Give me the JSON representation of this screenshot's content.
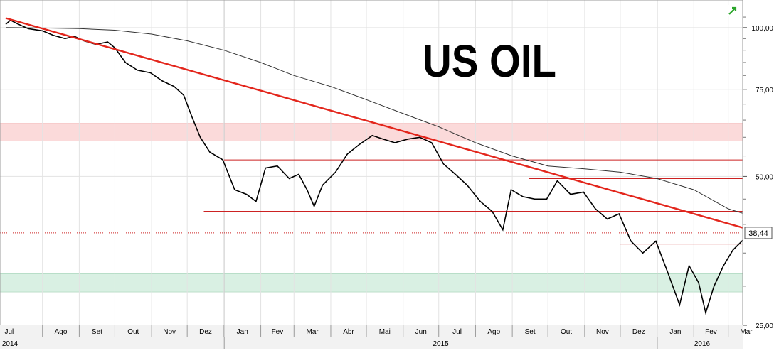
{
  "chart_data": {
    "type": "line",
    "title": "US OIL",
    "y_scale": "log",
    "ylim": [
      25,
      110
    ],
    "y_ticks": [
      {
        "value": 25,
        "label": "25,00"
      },
      {
        "value": 50,
        "label": "50,00"
      },
      {
        "value": 75,
        "label": "75,00"
      },
      {
        "value": 100,
        "label": "100,00"
      }
    ],
    "last_price": {
      "value": 38.44,
      "label": "38,44"
    },
    "x_months": [
      "Jul",
      "Ago",
      "Set",
      "Out",
      "Nov",
      "Dez",
      "Jan",
      "Fev",
      "Mar",
      "Abr",
      "Mai",
      "Jun",
      "Jul",
      "Ago",
      "Set",
      "Out",
      "Nov",
      "Dez",
      "Jan",
      "Fev",
      "Mar"
    ],
    "x_years": [
      {
        "label": "2014",
        "start_month": "2014-06"
      },
      {
        "label": "2015",
        "start_month": "2014-12.5"
      },
      {
        "label": "2016",
        "start_month": "2015-12"
      }
    ],
    "price_series": [
      [
        "2014-07-01",
        101.5
      ],
      [
        "2014-07-05",
        103.5
      ],
      [
        "2014-07-10",
        102
      ],
      [
        "2014-07-20",
        99.5
      ],
      [
        "2014-08-01",
        98.5
      ],
      [
        "2014-08-10",
        96.5
      ],
      [
        "2014-08-20",
        95
      ],
      [
        "2014-08-28",
        96
      ],
      [
        "2014-09-05",
        94
      ],
      [
        "2014-09-15",
        92.5
      ],
      [
        "2014-09-25",
        93.5
      ],
      [
        "2014-10-01",
        91
      ],
      [
        "2014-10-10",
        85
      ],
      [
        "2014-10-20",
        82
      ],
      [
        "2014-10-31",
        81
      ],
      [
        "2014-11-10",
        78
      ],
      [
        "2014-11-20",
        76
      ],
      [
        "2014-11-28",
        73
      ],
      [
        "2014-12-05",
        66
      ],
      [
        "2014-12-12",
        60
      ],
      [
        "2014-12-20",
        56
      ],
      [
        "2014-12-31",
        54
      ],
      [
        "2015-01-10",
        47
      ],
      [
        "2015-01-20",
        46
      ],
      [
        "2015-01-28",
        44.5
      ],
      [
        "2015-02-05",
        52
      ],
      [
        "2015-02-15",
        52.5
      ],
      [
        "2015-02-25",
        49.5
      ],
      [
        "2015-03-05",
        50.5
      ],
      [
        "2015-03-12",
        47
      ],
      [
        "2015-03-18",
        43.5
      ],
      [
        "2015-03-25",
        48
      ],
      [
        "2015-04-05",
        51
      ],
      [
        "2015-04-15",
        55.5
      ],
      [
        "2015-04-25",
        58
      ],
      [
        "2015-05-06",
        60.5
      ],
      [
        "2015-05-15",
        59.5
      ],
      [
        "2015-05-25",
        58.5
      ],
      [
        "2015-06-05",
        59.5
      ],
      [
        "2015-06-15",
        60
      ],
      [
        "2015-06-25",
        58.5
      ],
      [
        "2015-07-05",
        53
      ],
      [
        "2015-07-15",
        50.5
      ],
      [
        "2015-07-25",
        48
      ],
      [
        "2015-08-05",
        44.5
      ],
      [
        "2015-08-15",
        42.5
      ],
      [
        "2015-08-24",
        39
      ],
      [
        "2015-08-31",
        47
      ],
      [
        "2015-09-10",
        45.5
      ],
      [
        "2015-09-20",
        45
      ],
      [
        "2015-09-30",
        45
      ],
      [
        "2015-10-09",
        49
      ],
      [
        "2015-10-20",
        46
      ],
      [
        "2015-10-31",
        46.5
      ],
      [
        "2015-11-10",
        43
      ],
      [
        "2015-11-20",
        41
      ],
      [
        "2015-11-30",
        42
      ],
      [
        "2015-12-10",
        37
      ],
      [
        "2015-12-20",
        35
      ],
      [
        "2015-12-31",
        37
      ],
      [
        "2016-01-10",
        32
      ],
      [
        "2016-01-20",
        27.5
      ],
      [
        "2016-01-28",
        33
      ],
      [
        "2016-02-05",
        30.5
      ],
      [
        "2016-02-11",
        26.5
      ],
      [
        "2016-02-18",
        30
      ],
      [
        "2016-02-26",
        33
      ],
      [
        "2016-03-05",
        35.5
      ],
      [
        "2016-03-15",
        37.5
      ],
      [
        "2016-03-22",
        38.44
      ]
    ],
    "moving_average": [
      [
        "2014-07-01",
        100
      ],
      [
        "2014-08-01",
        99.8
      ],
      [
        "2014-09-01",
        99.5
      ],
      [
        "2014-10-01",
        98.8
      ],
      [
        "2014-11-01",
        97
      ],
      [
        "2014-12-01",
        94
      ],
      [
        "2015-01-01",
        90
      ],
      [
        "2015-02-01",
        85
      ],
      [
        "2015-03-01",
        80
      ],
      [
        "2015-04-01",
        76
      ],
      [
        "2015-05-01",
        71.5
      ],
      [
        "2015-06-01",
        67
      ],
      [
        "2015-07-01",
        63
      ],
      [
        "2015-08-01",
        58.5
      ],
      [
        "2015-09-01",
        55
      ],
      [
        "2015-10-01",
        52.5
      ],
      [
        "2015-11-01",
        51.8
      ],
      [
        "2015-12-01",
        51
      ],
      [
        "2016-01-01",
        49.5
      ],
      [
        "2016-02-01",
        47
      ],
      [
        "2016-03-01",
        43
      ],
      [
        "2016-03-22",
        41.5
      ]
    ],
    "trendline": {
      "from": [
        "2014-07-01",
        104.5
      ],
      "to": [
        "2016-03-31",
        38.3
      ]
    },
    "horizontal_levels": [
      {
        "y": 54,
        "from": "2015-01-01"
      },
      {
        "y": 49.5,
        "from": "2015-09-15"
      },
      {
        "y": 42.5,
        "from": "2014-12-15"
      },
      {
        "y": 36.5,
        "from": "2015-12-01"
      }
    ],
    "zones": [
      {
        "y1": 59,
        "y2": 64,
        "color": "#fbdada"
      },
      {
        "y1": 29.2,
        "y2": 31.8,
        "color": "#d9f0e3"
      }
    ]
  },
  "colors": {
    "price": "#000000",
    "ma": "#333333",
    "trend": "#e3261c",
    "levels": "#cc2222",
    "grid": "#e3e3e3"
  },
  "icon": "green-arrow-icon"
}
